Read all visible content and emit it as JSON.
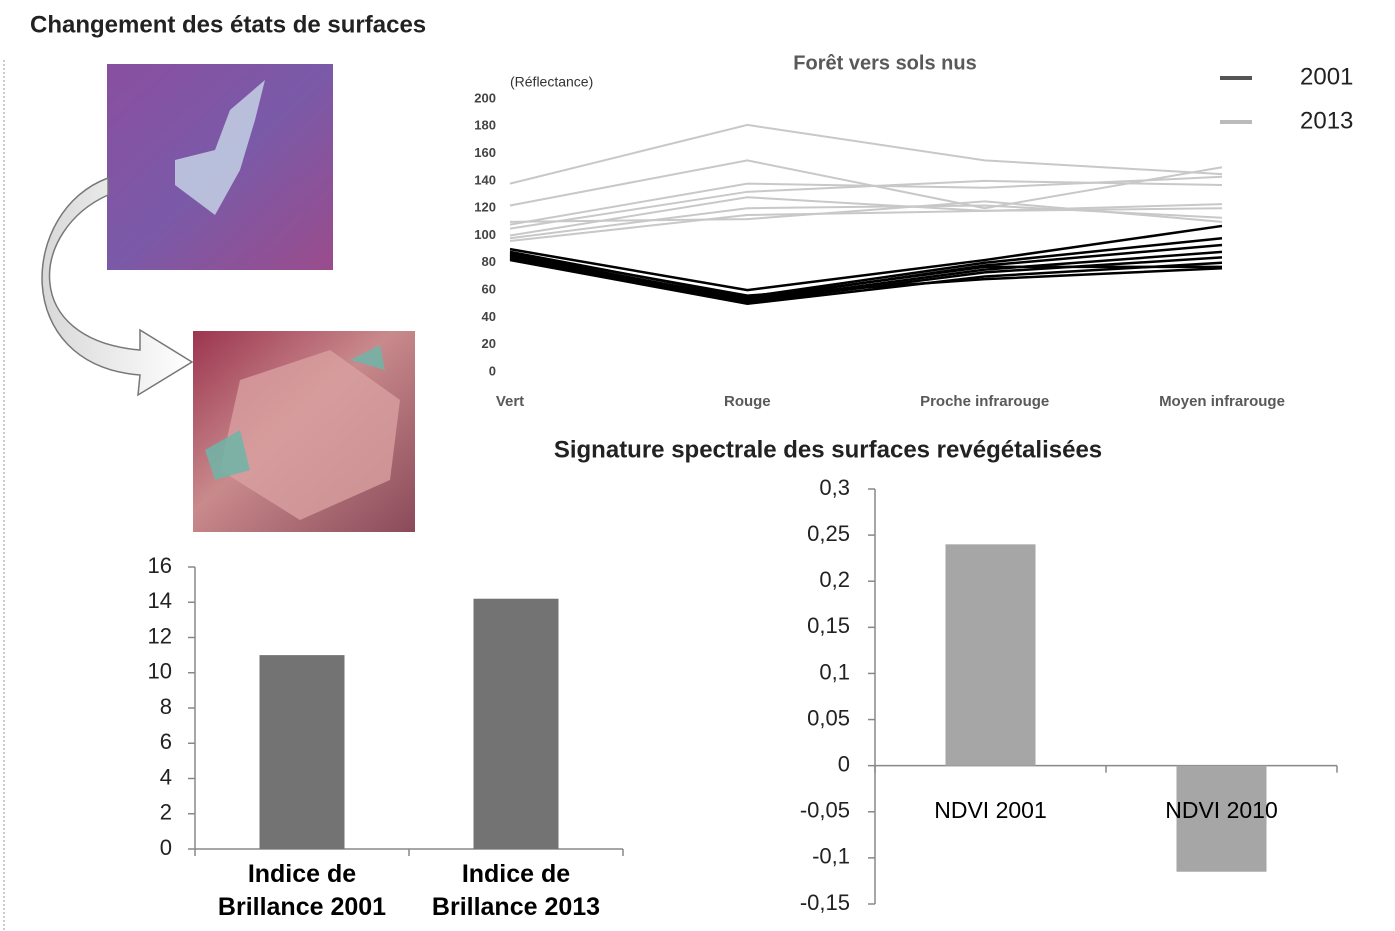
{
  "title": "Changement des états de surfaces",
  "chart_data": [
    {
      "type": "line",
      "title": "Forêt vers sols nus",
      "y_label": "(Réflectance)",
      "categories": [
        "Vert",
        "Rouge",
        "Proche infrarouge",
        "Moyen infrarouge"
      ],
      "ylim": [
        0,
        200
      ],
      "yticks": [
        0,
        20,
        40,
        60,
        80,
        100,
        120,
        140,
        160,
        180,
        200
      ],
      "series": [
        {
          "name": "2001",
          "color": "#000000",
          "legend_color": "#555555",
          "values": [
            [
              90,
              60,
              82,
              107
            ],
            [
              88,
              55,
              80,
              98
            ],
            [
              86,
              53,
              78,
              93
            ],
            [
              85,
              52,
              75,
              88
            ],
            [
              83,
              51,
              73,
              84
            ],
            [
              82,
              50,
              70,
              80
            ],
            [
              84,
              54,
              77,
              77
            ],
            [
              87,
              56,
              68,
              76
            ]
          ]
        },
        {
          "name": "2013",
          "color": "#c8c8c8",
          "legend_color": "#bbbbbb",
          "values": [
            [
              138,
              181,
              155,
              145
            ],
            [
              122,
              155,
              120,
              150
            ],
            [
              108,
              138,
              135,
              143
            ],
            [
              105,
              132,
              140,
              137
            ],
            [
              100,
              128,
              118,
              120
            ],
            [
              98,
              120,
              122,
              113
            ],
            [
              96,
              115,
              118,
              123
            ],
            [
              110,
              112,
              125,
              110
            ]
          ]
        }
      ]
    },
    {
      "type": "bar",
      "categories": [
        "Indice de\nBrillance 2001",
        "Indice de\nBrillance 2013"
      ],
      "values": [
        11,
        14.2
      ],
      "color": "#737373",
      "ylim": [
        0,
        16
      ],
      "yticks": [
        0,
        2,
        4,
        6,
        8,
        10,
        12,
        14,
        16
      ]
    },
    {
      "type": "bar",
      "title": "Signature spectrale des surfaces revégétalisées",
      "categories": [
        "NDVI 2001",
        "NDVI 2010"
      ],
      "values": [
        0.24,
        -0.115
      ],
      "color": "#a6a6a6",
      "ylim": [
        -0.15,
        0.3
      ],
      "yticks": [
        {
          "value": -0.15,
          "label": "-0,15"
        },
        {
          "value": -0.1,
          "label": "-0,1"
        },
        {
          "value": -0.05,
          "label": "-0,05"
        },
        0,
        {
          "value": 0.05,
          "label": "0,05"
        },
        {
          "value": 0.1,
          "label": "0,1"
        },
        {
          "value": 0.15,
          "label": "0,15"
        },
        {
          "value": 0.2,
          "label": "0,2"
        },
        {
          "value": 0.25,
          "label": "0,25"
        },
        {
          "value": 0.3,
          "label": "0,3"
        }
      ]
    }
  ]
}
